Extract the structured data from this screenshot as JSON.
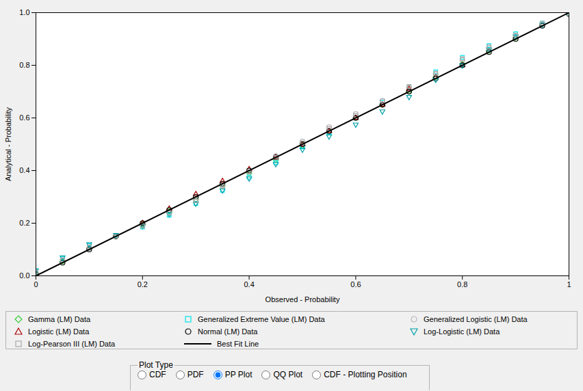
{
  "chart_data": {
    "type": "scatter",
    "xlabel": "Observed - Probability",
    "ylabel": "Analytical - Probability",
    "xlim": [
      0,
      1
    ],
    "ylim": [
      0,
      1
    ],
    "xticks": [
      0,
      0.2,
      0.4,
      0.6,
      0.8,
      1
    ],
    "yticks": [
      {
        "value": 0,
        "label": "0.0"
      },
      0.2,
      0.4,
      0.6,
      0.8,
      {
        "value": 1,
        "label": "1.0"
      }
    ],
    "grid": true,
    "legend": "bottom",
    "series": [
      {
        "name": "Gamma (LM) Data",
        "color": "#33cc33",
        "marker": "diamond",
        "x": [
          0,
          0.05,
          0.1,
          0.15,
          0.2,
          0.25,
          0.3,
          0.35,
          0.4,
          0.45,
          0.5,
          0.55,
          0.6,
          0.65,
          0.7,
          0.75,
          0.8,
          0.85,
          0.9,
          0.95,
          1
        ],
        "values": [
          0.01,
          0.055,
          0.105,
          0.15,
          0.195,
          0.245,
          0.29,
          0.34,
          0.39,
          0.44,
          0.495,
          0.545,
          0.6,
          0.65,
          0.7,
          0.755,
          0.805,
          0.855,
          0.905,
          0.955,
          0.995
        ]
      },
      {
        "name": "Generalized Extreme Value (LM) Data",
        "color": "#00e5ee",
        "marker": "square",
        "x": [
          0,
          0.05,
          0.1,
          0.15,
          0.2,
          0.25,
          0.3,
          0.35,
          0.4,
          0.45,
          0.5,
          0.55,
          0.6,
          0.65,
          0.7,
          0.75,
          0.8,
          0.85,
          0.9,
          0.95,
          1
        ],
        "values": [
          0.02,
          0.065,
          0.115,
          0.15,
          0.185,
          0.23,
          0.275,
          0.325,
          0.375,
          0.43,
          0.49,
          0.545,
          0.6,
          0.66,
          0.715,
          0.775,
          0.83,
          0.875,
          0.92,
          0.96,
          0.995
        ]
      },
      {
        "name": "Generalized Logistic (LM) Data",
        "color": "#b4b4b4",
        "marker": "circle",
        "x": [
          0,
          0.05,
          0.1,
          0.15,
          0.2,
          0.25,
          0.3,
          0.35,
          0.4,
          0.45,
          0.5,
          0.55,
          0.6,
          0.65,
          0.7,
          0.75,
          0.8,
          0.85,
          0.9,
          0.95,
          1
        ],
        "values": [
          0.01,
          0.06,
          0.105,
          0.15,
          0.19,
          0.24,
          0.29,
          0.345,
          0.4,
          0.455,
          0.51,
          0.565,
          0.615,
          0.665,
          0.715,
          0.765,
          0.82,
          0.865,
          0.91,
          0.955,
          0.995
        ]
      },
      {
        "name": "Logistic (LM) Data",
        "color": "#b00000",
        "marker": "triangle",
        "x": [
          0.2,
          0.25,
          0.3,
          0.35,
          0.4,
          0.45,
          0.5,
          0.55,
          0.6,
          0.65,
          0.7,
          0.75,
          0.8
        ],
        "values": [
          0.2,
          0.255,
          0.31,
          0.36,
          0.405,
          0.45,
          0.5,
          0.55,
          0.6,
          0.65,
          0.71,
          0.755,
          0.8
        ]
      },
      {
        "name": "Normal (LM) Data",
        "color": "#000000",
        "marker": "circle",
        "x": [
          0,
          0.05,
          0.1,
          0.15,
          0.2,
          0.25,
          0.3,
          0.35,
          0.4,
          0.45,
          0.5,
          0.55,
          0.6,
          0.65,
          0.7,
          0.75,
          0.8,
          0.85,
          0.9,
          0.95,
          1
        ],
        "values": [
          0.005,
          0.05,
          0.1,
          0.15,
          0.2,
          0.25,
          0.3,
          0.35,
          0.4,
          0.45,
          0.5,
          0.55,
          0.6,
          0.65,
          0.7,
          0.75,
          0.8,
          0.85,
          0.9,
          0.95,
          0.995
        ]
      },
      {
        "name": "Log-Logistic (LM) Data",
        "color": "#00a0a8",
        "marker": "triangle-down",
        "x": [
          0,
          0.05,
          0.1,
          0.15,
          0.2,
          0.25,
          0.3,
          0.35,
          0.4,
          0.45,
          0.5,
          0.55,
          0.6,
          0.65,
          0.7,
          0.75,
          0.8,
          0.85,
          0.9,
          0.95,
          1
        ],
        "values": [
          0.02,
          0.07,
          0.12,
          0.155,
          0.19,
          0.235,
          0.275,
          0.325,
          0.37,
          0.425,
          0.48,
          0.53,
          0.575,
          0.625,
          0.68,
          0.745,
          0.8,
          0.86,
          0.91,
          0.955,
          0.995
        ]
      },
      {
        "name": "Log-Pearson III (LM) Data",
        "color": "#a9a9a9",
        "marker": "square",
        "x": [
          0,
          0.05,
          0.1,
          0.15,
          0.2,
          0.25,
          0.3,
          0.35,
          0.4,
          0.45,
          0.5,
          0.55,
          0.6,
          0.65,
          0.7,
          0.75,
          0.8,
          0.85,
          0.9,
          0.95,
          1
        ],
        "values": [
          0.015,
          0.06,
          0.11,
          0.15,
          0.19,
          0.24,
          0.285,
          0.34,
          0.395,
          0.45,
          0.505,
          0.56,
          0.61,
          0.665,
          0.72,
          0.77,
          0.825,
          0.87,
          0.915,
          0.96,
          0.995
        ]
      },
      {
        "name": "Best Fit Line",
        "color": "#000000",
        "type": "line",
        "line_style": "solid",
        "x": [
          0,
          1
        ],
        "values": [
          0,
          1
        ]
      }
    ]
  },
  "plot_type": {
    "title": "Plot Type",
    "options": [
      "CDF",
      "PDF",
      "PP Plot",
      "QQ Plot",
      "CDF - Plotting Position"
    ],
    "selected": "PP Plot"
  }
}
